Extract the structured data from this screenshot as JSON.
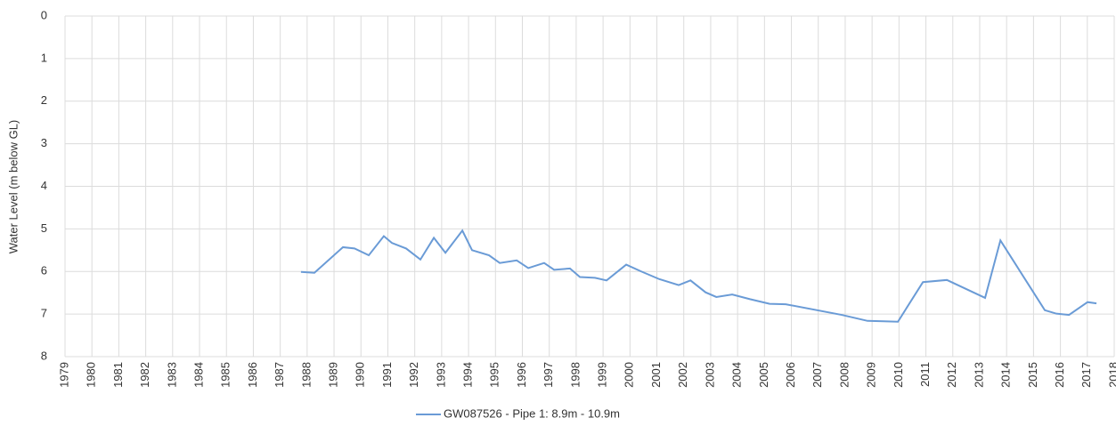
{
  "chart_data": {
    "type": "line",
    "y_label": "Water Level (m below GL)",
    "x": [
      1987.77,
      1988.27,
      1989.33,
      1989.76,
      1990.29,
      1990.85,
      1991.15,
      1991.68,
      1992.21,
      1992.71,
      1993.14,
      1993.77,
      1994.13,
      1994.76,
      1995.16,
      1995.79,
      1996.22,
      1996.81,
      1997.18,
      1997.77,
      1998.14,
      1998.7,
      1999.13,
      1999.86,
      2000.42,
      2001.09,
      2001.81,
      2002.25,
      2002.81,
      2003.21,
      2003.8,
      2004.46,
      2005.19,
      2005.79,
      2007.87,
      2008.83,
      2009.43,
      2009.96,
      2010.89,
      2011.78,
      2013.2,
      2013.77,
      2015.42,
      2015.85,
      2016.32,
      2017.01,
      2017.34
    ],
    "series": [
      {
        "name": "GW087526 - Pipe 1: 8.9m - 10.9m",
        "color": "#6a9bd6",
        "values": [
          6.01,
          6.03,
          5.43,
          5.46,
          5.62,
          5.17,
          5.33,
          5.46,
          5.72,
          5.21,
          5.56,
          5.04,
          5.5,
          5.62,
          5.8,
          5.74,
          5.92,
          5.8,
          5.96,
          5.93,
          6.13,
          6.15,
          6.21,
          5.84,
          6.0,
          6.18,
          6.32,
          6.21,
          6.49,
          6.6,
          6.54,
          6.65,
          6.76,
          6.77,
          7.02,
          7.16,
          7.17,
          7.18,
          6.25,
          6.2,
          6.62,
          5.27,
          6.91,
          6.99,
          7.02,
          6.72,
          6.75
        ]
      }
    ],
    "xlim": [
      1979,
      2018
    ],
    "xticks": [
      1979,
      1980,
      1981,
      1982,
      1983,
      1984,
      1985,
      1986,
      1987,
      1988,
      1989,
      1990,
      1991,
      1992,
      1993,
      1994,
      1995,
      1996,
      1997,
      1998,
      1999,
      2000,
      2001,
      2002,
      2003,
      2004,
      2005,
      2006,
      2007,
      2008,
      2009,
      2010,
      2011,
      2012,
      2013,
      2014,
      2015,
      2016,
      2017,
      2018
    ],
    "ylim": [
      0,
      8
    ],
    "yticks": [
      0,
      1,
      2,
      3,
      4,
      5,
      6,
      7,
      8
    ],
    "y_inverted": true,
    "grid": true,
    "legend": "bottom"
  }
}
